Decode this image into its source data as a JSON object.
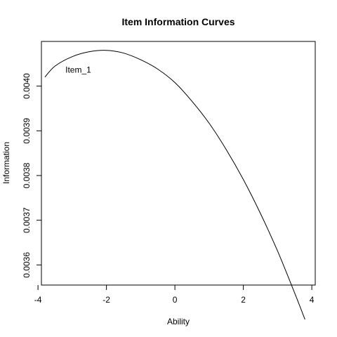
{
  "chart_data": {
    "type": "line",
    "title": "Item Information Curves",
    "xlabel": "Ability",
    "ylabel": "Information",
    "xlim": [
      -3.9,
      4.1
    ],
    "ylim": [
      0.003555,
      0.0041
    ],
    "x_ticks": [
      "-4",
      "-2",
      "0",
      "2",
      "4"
    ],
    "x_tick_values": [
      -4,
      -2,
      0,
      2,
      4
    ],
    "y_ticks": [
      "0.0036",
      "0.0037",
      "0.0038",
      "0.0039",
      "0.0040"
    ],
    "y_tick_values": [
      0.0036,
      0.0037,
      0.0038,
      0.0039,
      0.004
    ],
    "grid": false,
    "series": [
      {
        "name": "Item_1",
        "x": [
          -3.8,
          -3.5,
          -3.0,
          -2.5,
          -2.0,
          -1.5,
          -1.0,
          -0.5,
          0.0,
          0.5,
          1.0,
          1.5,
          2.0,
          2.5,
          3.0,
          3.5,
          3.8
        ],
        "y": [
          0.00402,
          0.004045,
          0.004066,
          0.004077,
          0.00408,
          0.004074,
          0.004059,
          0.004038,
          0.004008,
          0.003966,
          0.003917,
          0.003858,
          0.003791,
          0.003715,
          0.003631,
          0.003537,
          0.003478
        ]
      }
    ],
    "annotations": [
      {
        "text": "Item_1",
        "x": -3.2,
        "y": 0.00403
      }
    ]
  }
}
